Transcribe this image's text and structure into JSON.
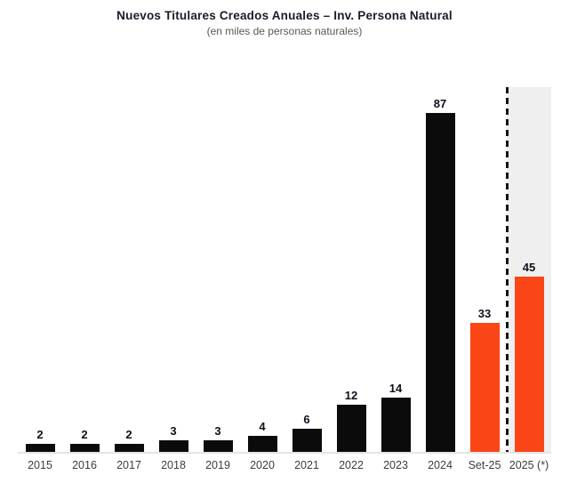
{
  "chart_data": {
    "type": "bar",
    "title": "Nuevos Titulares Creados Anuales – Inv. Persona Natural",
    "subtitle": "(en miles de personas naturales)",
    "categories": [
      "2015",
      "2016",
      "2017",
      "2018",
      "2019",
      "2020",
      "2021",
      "2022",
      "2023",
      "2024",
      "Set-25",
      "2025 (*)"
    ],
    "values": [
      2,
      2,
      2,
      3,
      3,
      4,
      6,
      12,
      14,
      87,
      33,
      45
    ],
    "bar_colors": [
      "#0b0b0b",
      "#0b0b0b",
      "#0b0b0b",
      "#0b0b0b",
      "#0b0b0b",
      "#0b0b0b",
      "#0b0b0b",
      "#0b0b0b",
      "#0b0b0b",
      "#0b0b0b",
      "#fa4616",
      "#fa4616"
    ],
    "xlabel": "",
    "ylabel": "",
    "ylim": [
      0,
      95
    ],
    "grid": false,
    "legend": "none",
    "data_labels": true,
    "annotations": {
      "dashed_divider_before": "2025 (*)",
      "shaded_region": "2025 (*)"
    },
    "colors": {
      "bar_default": "#0b0b0b",
      "bar_highlight": "#fa4616",
      "shaded_region_bg": "#efefef",
      "divider_line": "#141414",
      "axis_line": "#e4e4e4",
      "title_text": "#1c1c2a",
      "subtitle_text": "#585858",
      "tick_text": "#3c3c46"
    }
  }
}
